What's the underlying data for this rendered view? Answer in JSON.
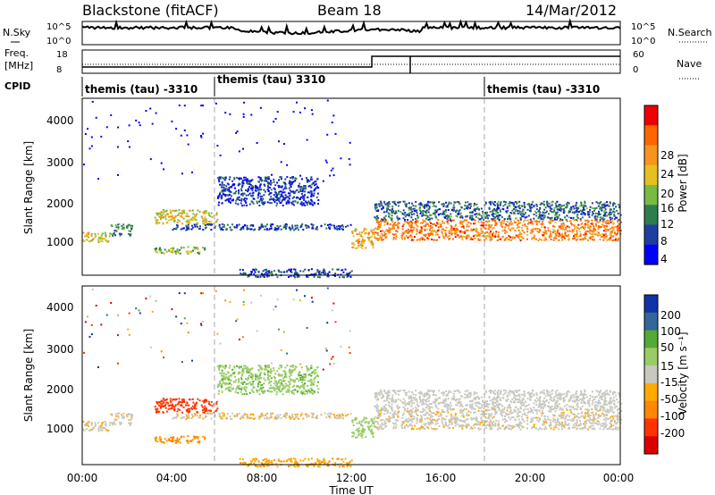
{
  "header": {
    "radar": "Blackstone (fitACF)",
    "beam": "Beam 18",
    "date": "14/Mar/2012"
  },
  "noise_panel": {
    "left_label": "N.Sky",
    "left_ticks": [
      "10^5",
      "10^0"
    ],
    "right_ticks": [
      "10^5",
      "10^0"
    ],
    "right_label": "N.Search"
  },
  "freq_panel": {
    "left_label_1": "Freq.",
    "left_label_2": "[MHz]",
    "left_ticks": [
      "18",
      "8"
    ],
    "right_ticks": [
      "60",
      "0"
    ],
    "right_label": "Nave"
  },
  "cpid": {
    "label": "CPID",
    "segments": [
      {
        "text": "themis (tau) -3310",
        "start_h": 0
      },
      {
        "text": "themis (tau) 3310",
        "start_h": 6
      },
      {
        "text": "themis (tau) -3310",
        "start_h": 18
      }
    ]
  },
  "power_panel": {
    "ylabel": "Slant Range [km]",
    "yticks": [
      "4000",
      "3000",
      "2000",
      "1000"
    ],
    "cbar_label": "Power [dB]",
    "cbar_ticks": [
      "28",
      "24",
      "20",
      "16",
      "12",
      "8",
      "4"
    ]
  },
  "velocity_panel": {
    "ylabel": "Slant Range [km]",
    "yticks": [
      "4000",
      "3000",
      "2000",
      "1000"
    ],
    "cbar_label": "Velocity [m s⁻¹]",
    "cbar_ticks": [
      "200",
      "100",
      "50",
      "15",
      "-15",
      "-50",
      "-100",
      "-200"
    ]
  },
  "xaxis": {
    "label": "Time UT",
    "ticks": [
      "00:00",
      "04:00",
      "08:00",
      "12:00",
      "16:00",
      "20:00",
      "00:00"
    ]
  },
  "colors": {
    "power_scale": [
      "#0000ff",
      "#1f3fa0",
      "#2e7d4f",
      "#77bb44",
      "#e6c020",
      "#f7941d",
      "#ff6600",
      "#ee0000"
    ],
    "velocity_scale": [
      "#dd0000",
      "#ff3300",
      "#ff8800",
      "#ffaa00",
      "#c8c8c0",
      "#99cc66",
      "#55aa33",
      "#336699",
      "#1133aa"
    ]
  },
  "chart_data": {
    "type": "heatmap",
    "title": "Blackstone (fitACF) Beam 18 14/Mar/2012",
    "xlabel": "Time UT",
    "ylabel": "Slant Range [km]",
    "xlim": [
      0,
      24
    ],
    "ylim": [
      180,
      4500
    ],
    "x_ticks": [
      "00:00",
      "04:00",
      "08:00",
      "12:00",
      "16:00",
      "20:00",
      "00:00"
    ],
    "y_ticks": [
      1000,
      2000,
      3000,
      4000
    ],
    "freq_mhz": [
      {
        "t_start": 0,
        "t_end": 13,
        "value": 10.5
      },
      {
        "t_start": 13,
        "t_end": 24,
        "value": 16.5
      }
    ],
    "power_colorbar_db": [
      4,
      8,
      12,
      16,
      20,
      24,
      28
    ],
    "velocity_colorbar_ms": [
      -200,
      -100,
      -50,
      -15,
      15,
      50,
      100,
      200
    ],
    "scatter_regions": [
      {
        "t_start": 0.0,
        "t_end": 1.2,
        "range_low": 1000,
        "range_high": 1250,
        "power_db": 18,
        "velocity": -10
      },
      {
        "t_start": 1.2,
        "t_end": 2.2,
        "range_low": 1150,
        "range_high": 1450,
        "power_db": 10,
        "velocity": -10
      },
      {
        "t_start": 3.2,
        "t_end": 6.0,
        "range_low": 1450,
        "range_high": 1800,
        "power_db": 18,
        "velocity": -180
      },
      {
        "t_start": 3.2,
        "t_end": 5.5,
        "range_low": 720,
        "range_high": 900,
        "power_db": 14,
        "velocity": -60
      },
      {
        "t_start": 4.0,
        "t_end": 12.0,
        "range_low": 1300,
        "range_high": 1450,
        "power_db": 6,
        "velocity": -10
      },
      {
        "t_start": 6.0,
        "t_end": 10.5,
        "range_low": 1900,
        "range_high": 2600,
        "power_db": 5,
        "velocity": 40
      },
      {
        "t_start": 7.0,
        "t_end": 12.0,
        "range_low": 150,
        "range_high": 350,
        "power_db": 6,
        "velocity": -40
      },
      {
        "t_start": 12.0,
        "t_end": 13.0,
        "range_low": 850,
        "range_high": 1350,
        "power_db": 20,
        "velocity": 30
      },
      {
        "t_start": 13.0,
        "t_end": 24.0,
        "range_low": 1050,
        "range_high": 1550,
        "power_db": 24,
        "velocity": -5
      },
      {
        "t_start": 13.0,
        "t_end": 24.0,
        "range_low": 1550,
        "range_high": 2000,
        "power_db": 8,
        "velocity": 0
      }
    ]
  }
}
